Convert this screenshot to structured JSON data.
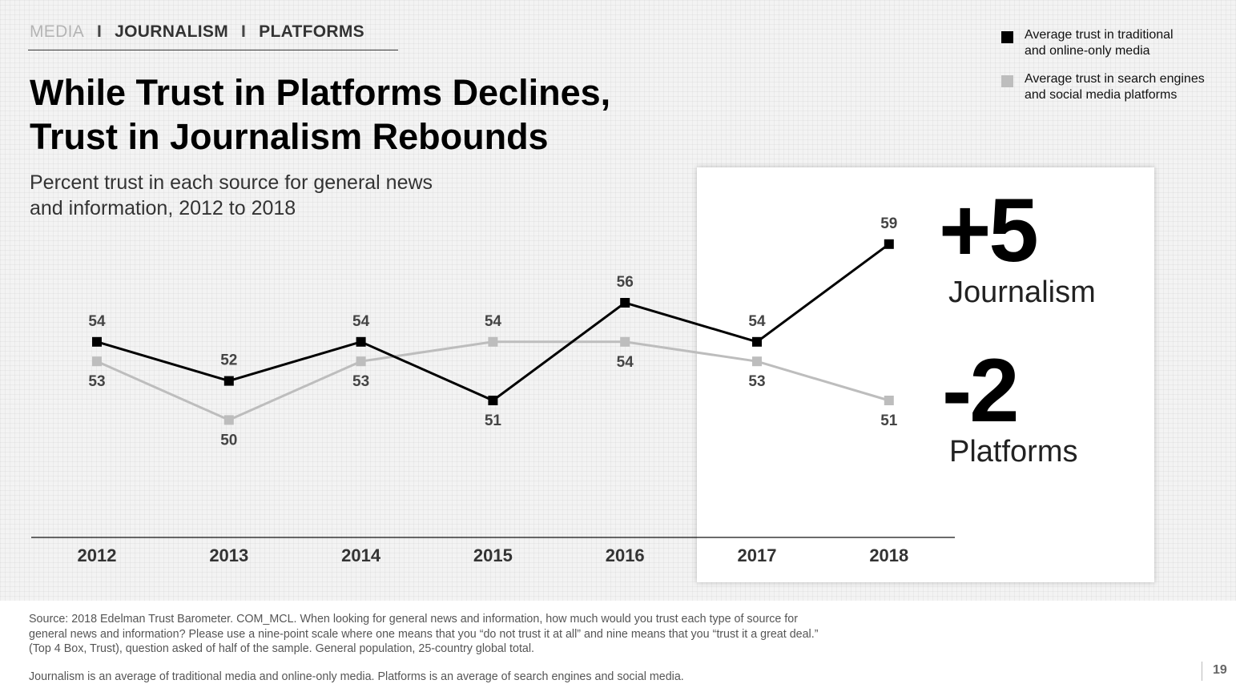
{
  "breadcrumb": {
    "item1": "MEDIA",
    "sep": "I",
    "item2": "JOURNALISM",
    "item3": "PLATFORMS"
  },
  "title_line1": "While Trust in Platforms Declines,",
  "title_line2": "Trust in Journalism Rebounds",
  "subtitle_line1": "Percent trust in each source for general news",
  "subtitle_line2": "and information, 2012 to 2018",
  "legend": [
    {
      "line1": "Average trust in traditional",
      "line2": "and online-only media",
      "color": "#000000"
    },
    {
      "line1": "Average trust in search engines",
      "line2": "and social media platforms",
      "color": "#bdbdbd"
    }
  ],
  "callouts": {
    "journalism_change": "+5",
    "journalism_label": "Journalism",
    "platforms_change": "-2",
    "platforms_label": "Platforms"
  },
  "chart_data": {
    "type": "line",
    "title": "Percent trust in each source for general news and information, 2012 to 2018",
    "categories": [
      "2012",
      "2013",
      "2014",
      "2015",
      "2016",
      "2017",
      "2018"
    ],
    "series": [
      {
        "name": "Average trust in traditional and online-only media",
        "values": [
          54,
          52,
          54,
          51,
          56,
          54,
          59
        ],
        "color": "#000000"
      },
      {
        "name": "Average trust in search engines and social media platforms",
        "values": [
          53,
          50,
          53,
          54,
          54,
          53,
          51
        ],
        "color": "#bdbdbd"
      }
    ],
    "xlabel": "",
    "ylabel": "",
    "ylim": [
      44,
      62
    ],
    "grid": false,
    "legend": "top-right"
  },
  "footnote": {
    "line1": "Source: 2018 Edelman Trust Barometer. COM_MCL. When looking for general news and information, how much would you trust each type of source for",
    "line2": "general news and information? Please use a nine-point scale where one means that you “do not trust it at all” and nine means that you “trust it a great deal.”",
    "line3": "(Top 4 Box, Trust), question asked of half of the sample. General population, 25-country global total.",
    "line4": "Journalism is an average of traditional media and online-only media. Platforms is an average of search engines and social media."
  },
  "page_number": "19"
}
